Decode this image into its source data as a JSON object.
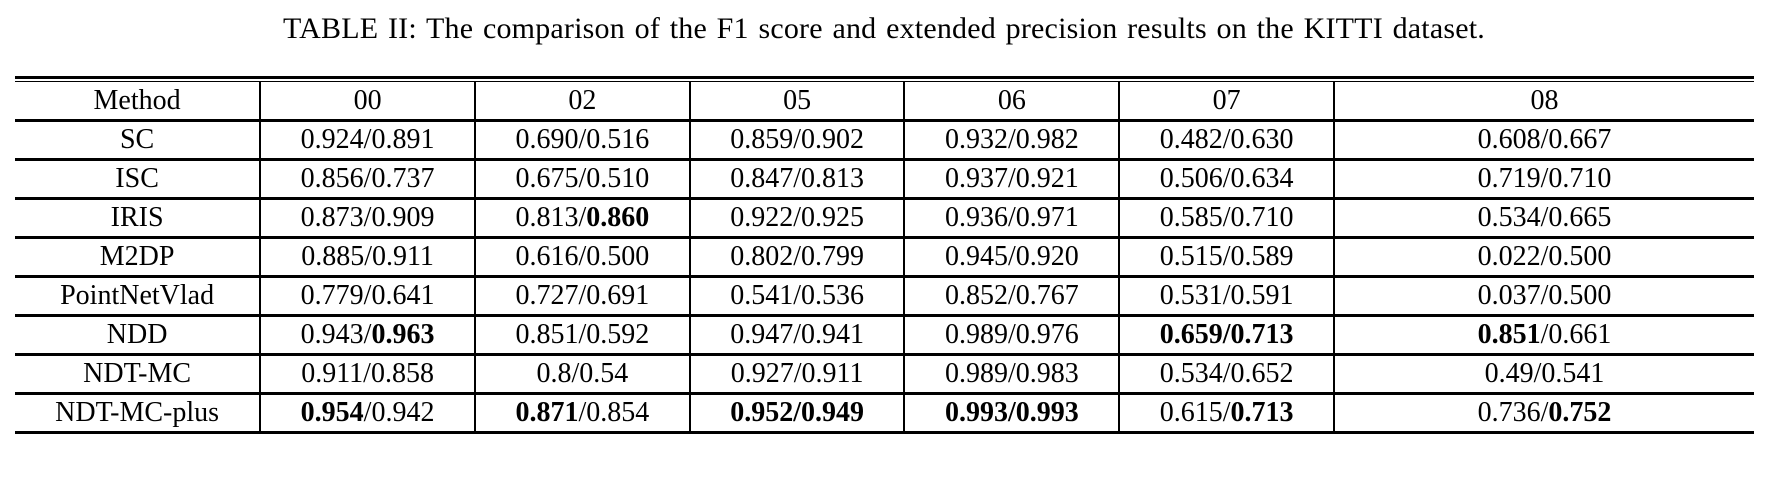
{
  "title": "TABLE II: The comparison of the F1 score and extended precision results on the KITTI dataset.",
  "table": {
    "columns": [
      "Method",
      "00",
      "02",
      "05",
      "06",
      "07",
      "08"
    ],
    "rows": [
      {
        "method": "SC",
        "cells": [
          {
            "f1": "0.924",
            "ep": "0.891"
          },
          {
            "f1": "0.690",
            "ep": "0.516"
          },
          {
            "f1": "0.859",
            "ep": "0.902"
          },
          {
            "f1": "0.932",
            "ep": "0.982"
          },
          {
            "f1": "0.482",
            "ep": "0.630"
          },
          {
            "f1": "0.608",
            "ep": "0.667"
          }
        ]
      },
      {
        "method": "ISC",
        "cells": [
          {
            "f1": "0.856",
            "ep": "0.737"
          },
          {
            "f1": "0.675",
            "ep": "0.510"
          },
          {
            "f1": "0.847",
            "ep": "0.813"
          },
          {
            "f1": "0.937",
            "ep": "0.921"
          },
          {
            "f1": "0.506",
            "ep": "0.634"
          },
          {
            "f1": "0.719",
            "ep": "0.710"
          }
        ]
      },
      {
        "method": "IRIS",
        "cells": [
          {
            "f1": "0.873",
            "ep": "0.909"
          },
          {
            "f1": "0.813",
            "ep": "0.860",
            "ep_bold": true
          },
          {
            "f1": "0.922",
            "ep": "0.925"
          },
          {
            "f1": "0.936",
            "ep": "0.971"
          },
          {
            "f1": "0.585",
            "ep": "0.710"
          },
          {
            "f1": "0.534",
            "ep": "0.665"
          }
        ]
      },
      {
        "method": "M2DP",
        "cells": [
          {
            "f1": "0.885",
            "ep": "0.911"
          },
          {
            "f1": "0.616",
            "ep": "0.500"
          },
          {
            "f1": "0.802",
            "ep": "0.799"
          },
          {
            "f1": "0.945",
            "ep": "0.920"
          },
          {
            "f1": "0.515",
            "ep": "0.589"
          },
          {
            "f1": "0.022",
            "ep": "0.500"
          }
        ]
      },
      {
        "method": "PointNetVlad",
        "cells": [
          {
            "f1": "0.779",
            "ep": "0.641"
          },
          {
            "f1": "0.727",
            "ep": "0.691"
          },
          {
            "f1": "0.541",
            "ep": "0.536"
          },
          {
            "f1": "0.852",
            "ep": "0.767"
          },
          {
            "f1": "0.531",
            "ep": "0.591"
          },
          {
            "f1": "0.037",
            "ep": "0.500"
          }
        ]
      },
      {
        "method": "NDD",
        "cells": [
          {
            "f1": "0.943",
            "ep": "0.963",
            "ep_bold": true
          },
          {
            "f1": "0.851",
            "ep": "0.592"
          },
          {
            "f1": "0.947",
            "ep": "0.941"
          },
          {
            "f1": "0.989",
            "ep": "0.976"
          },
          {
            "f1": "0.659",
            "ep": "0.713",
            "f1_bold": true,
            "ep_bold": true
          },
          {
            "f1": "0.851",
            "ep": "0.661",
            "f1_bold": true
          }
        ]
      },
      {
        "method": "NDT-MC",
        "cells": [
          {
            "f1": "0.911",
            "ep": "0.858"
          },
          {
            "f1": "0.8",
            "ep": "0.54"
          },
          {
            "f1": "0.927",
            "ep": "0.911"
          },
          {
            "f1": "0.989",
            "ep": "0.983"
          },
          {
            "f1": "0.534",
            "ep": "0.652"
          },
          {
            "f1": "0.49",
            "ep": "0.541"
          }
        ]
      },
      {
        "method": "NDT-MC-plus",
        "cells": [
          {
            "f1": "0.954",
            "ep": "0.942",
            "f1_bold": true
          },
          {
            "f1": "0.871",
            "ep": "0.854",
            "f1_bold": true
          },
          {
            "f1": "0.952",
            "ep": "0.949",
            "f1_bold": true,
            "ep_bold": true
          },
          {
            "f1": "0.993",
            "ep": "0.993",
            "f1_bold": true,
            "ep_bold": true
          },
          {
            "f1": "0.615",
            "ep": "0.713",
            "ep_bold": true
          },
          {
            "f1": "0.736",
            "ep": "0.752",
            "ep_bold": true
          }
        ]
      }
    ]
  }
}
